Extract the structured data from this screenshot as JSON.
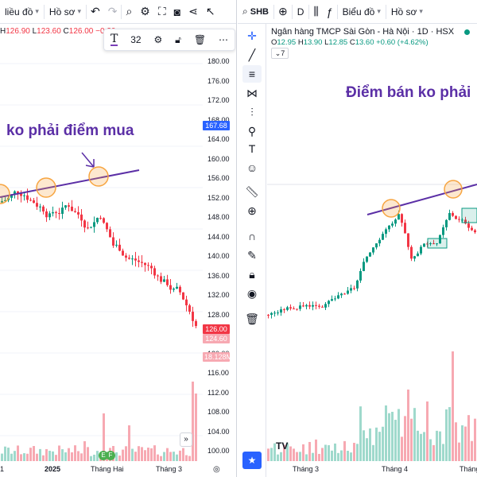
{
  "left": {
    "toolbar": {
      "chart_type": "liều đồ",
      "profile": "Hồ sơ"
    },
    "ohlc": {
      "h_label": "H",
      "h": "126.90",
      "l_label": "L",
      "l": "123.60",
      "c_label": "C",
      "c": "126.00",
      "chg": "−0.30"
    },
    "draw_toolbar": {
      "text_tool": "T",
      "font_size": "32"
    },
    "annotation": "ko phải điểm mua",
    "price_ticks": [
      "180.00",
      "176.00",
      "172.00",
      "168.00",
      "164.00",
      "160.00",
      "156.00",
      "152.00",
      "148.00",
      "144.00",
      "140.00",
      "136.00",
      "132.00",
      "128.00",
      "124.00",
      "120.00",
      "116.00",
      "112.00",
      "108.00",
      "104.00",
      "100.00"
    ],
    "last_price_badge": "167.68",
    "current_price_badge": "126.00",
    "low_price_badge": "124.60",
    "volume_badge": "18.128M",
    "time_ticks": [
      "1",
      "2025",
      "Tháng Hai",
      "Tháng 3"
    ],
    "colors": {
      "up": "#089981",
      "down": "#f23645",
      "annotation": "#5b2fa6",
      "trendline": "#5b2fa6",
      "circle": "#f7a541",
      "current_badge": "#f23645",
      "blue_badge": "#2962ff"
    }
  },
  "right": {
    "toolbar": {
      "symbol": "SHB",
      "interval": "D",
      "chart_type": "Biểu đồ",
      "profile": "Hồ sơ"
    },
    "legend": {
      "name": "Ngân hàng TMCP Sài Gòn - Hà Nội · 1D · HSX"
    },
    "ohlc": {
      "o_label": "O",
      "o": "12.95",
      "h_label": "H",
      "h": "13.90",
      "l_label": "L",
      "l": "12.85",
      "c_label": "C",
      "c": "13.60",
      "chg": "+0.60 (+4.62%)"
    },
    "collapse": "7",
    "annotation": "Điểm bán ko phải",
    "time_ticks": [
      "Tháng 3",
      "Tháng 4",
      "Tháng"
    ],
    "logo": "TV",
    "side_tools": [
      "crosshair-icon",
      "trend-line-icon",
      "fib-icon",
      "pattern-icon",
      "projection-icon",
      "brush-icon",
      "text-icon",
      "emoji-icon",
      "ruler-icon",
      "zoom-icon",
      "magnet-icon",
      "lock-drawing-icon",
      "lock-icon",
      "eye-icon",
      "trash-icon",
      "favorites-icon"
    ]
  }
}
